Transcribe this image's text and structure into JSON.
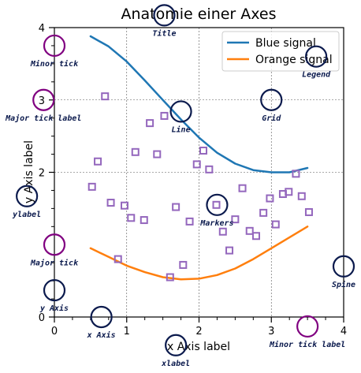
{
  "chart_data": {
    "type": "line",
    "title": "Anatomie einer Axes",
    "xlabel": "x Axis label",
    "ylabel": "y Axis label",
    "xlim": [
      0,
      4
    ],
    "ylim": [
      0,
      4
    ],
    "x_major_ticks": [
      0,
      1,
      2,
      3,
      4
    ],
    "y_major_ticks": [
      0,
      2,
      3,
      4
    ],
    "minor_tick_step": 0.25,
    "grid": true,
    "legend_position": "top-right",
    "series": [
      {
        "name": "Blue signal",
        "color": "#1f77b4",
        "x": [
          0.5,
          0.75,
          1.0,
          1.25,
          1.5,
          1.75,
          2.0,
          2.25,
          2.5,
          2.75,
          3.0,
          3.25,
          3.5
        ],
        "y": [
          3.88,
          3.74,
          3.53,
          3.27,
          3.0,
          2.73,
          2.48,
          2.27,
          2.12,
          2.03,
          2.0,
          2.0,
          2.06
        ]
      },
      {
        "name": "Orange signal",
        "color": "#ff7f0e",
        "x": [
          0.5,
          0.75,
          1.0,
          1.25,
          1.5,
          1.75,
          2.0,
          2.25,
          2.5,
          2.75,
          3.0,
          3.25,
          3.5
        ],
        "y": [
          0.95,
          0.83,
          0.71,
          0.62,
          0.55,
          0.52,
          0.53,
          0.58,
          0.67,
          0.8,
          0.95,
          1.1,
          1.25
        ]
      }
    ],
    "markers": {
      "color": "#9467bd",
      "shape": "square",
      "points": [
        [
          0.52,
          1.8
        ],
        [
          0.6,
          2.15
        ],
        [
          0.7,
          3.05
        ],
        [
          0.78,
          1.58
        ],
        [
          0.88,
          0.8
        ],
        [
          0.97,
          1.54
        ],
        [
          1.06,
          1.37
        ],
        [
          1.12,
          2.28
        ],
        [
          1.24,
          1.34
        ],
        [
          1.32,
          2.68
        ],
        [
          1.42,
          2.25
        ],
        [
          1.52,
          2.78
        ],
        [
          1.6,
          0.55
        ],
        [
          1.68,
          1.52
        ],
        [
          1.78,
          0.72
        ],
        [
          1.87,
          1.32
        ],
        [
          1.97,
          2.11
        ],
        [
          2.06,
          2.3
        ],
        [
          2.14,
          2.04
        ],
        [
          2.24,
          1.55
        ],
        [
          2.33,
          1.18
        ],
        [
          2.42,
          0.92
        ],
        [
          2.5,
          1.35
        ],
        [
          2.6,
          1.78
        ],
        [
          2.7,
          1.19
        ],
        [
          2.79,
          1.12
        ],
        [
          2.89,
          1.44
        ],
        [
          2.98,
          1.64
        ],
        [
          3.06,
          1.28
        ],
        [
          3.16,
          1.7
        ],
        [
          3.24,
          1.73
        ],
        [
          3.34,
          1.98
        ],
        [
          3.42,
          1.67
        ],
        [
          3.52,
          1.45
        ]
      ]
    },
    "annotations": [
      {
        "label": "Title",
        "x": 1.52,
        "y": 4.17,
        "color": "#0b1a4d"
      },
      {
        "label": "Minor tick",
        "x": 0.0,
        "y": 3.75,
        "color": "#800080"
      },
      {
        "label": "Major tick label",
        "x": -0.15,
        "y": 3.0,
        "color": "#800080"
      },
      {
        "label": "ylabel",
        "x": -0.38,
        "y": 1.67,
        "color": "#0b1a4d"
      },
      {
        "label": "Major tick",
        "x": 0.0,
        "y": 1.0,
        "color": "#800080"
      },
      {
        "label": "y Axis",
        "x": 0.0,
        "y": 0.37,
        "color": "#0b1a4d"
      },
      {
        "label": "x Axis",
        "x": 0.65,
        "y": 0.0,
        "color": "#0b1a4d"
      },
      {
        "label": "xlabel",
        "x": 1.68,
        "y": -0.39,
        "color": "#0b1a4d"
      },
      {
        "label": "Line",
        "x": 1.75,
        "y": 2.84,
        "color": "#0b1a4d"
      },
      {
        "label": "Markers",
        "x": 2.25,
        "y": 1.55,
        "color": "#0b1a4d"
      },
      {
        "label": "Grid",
        "x": 3.0,
        "y": 3.0,
        "color": "#0b1a4d"
      },
      {
        "label": "Legend",
        "x": 3.62,
        "y": 3.6,
        "color": "#0b1a4d"
      },
      {
        "label": "Spine",
        "x": 4.0,
        "y": 0.7,
        "color": "#0b1a4d"
      },
      {
        "label": "Minor tick label",
        "x": 3.5,
        "y": -0.13,
        "color": "#800080"
      }
    ]
  }
}
